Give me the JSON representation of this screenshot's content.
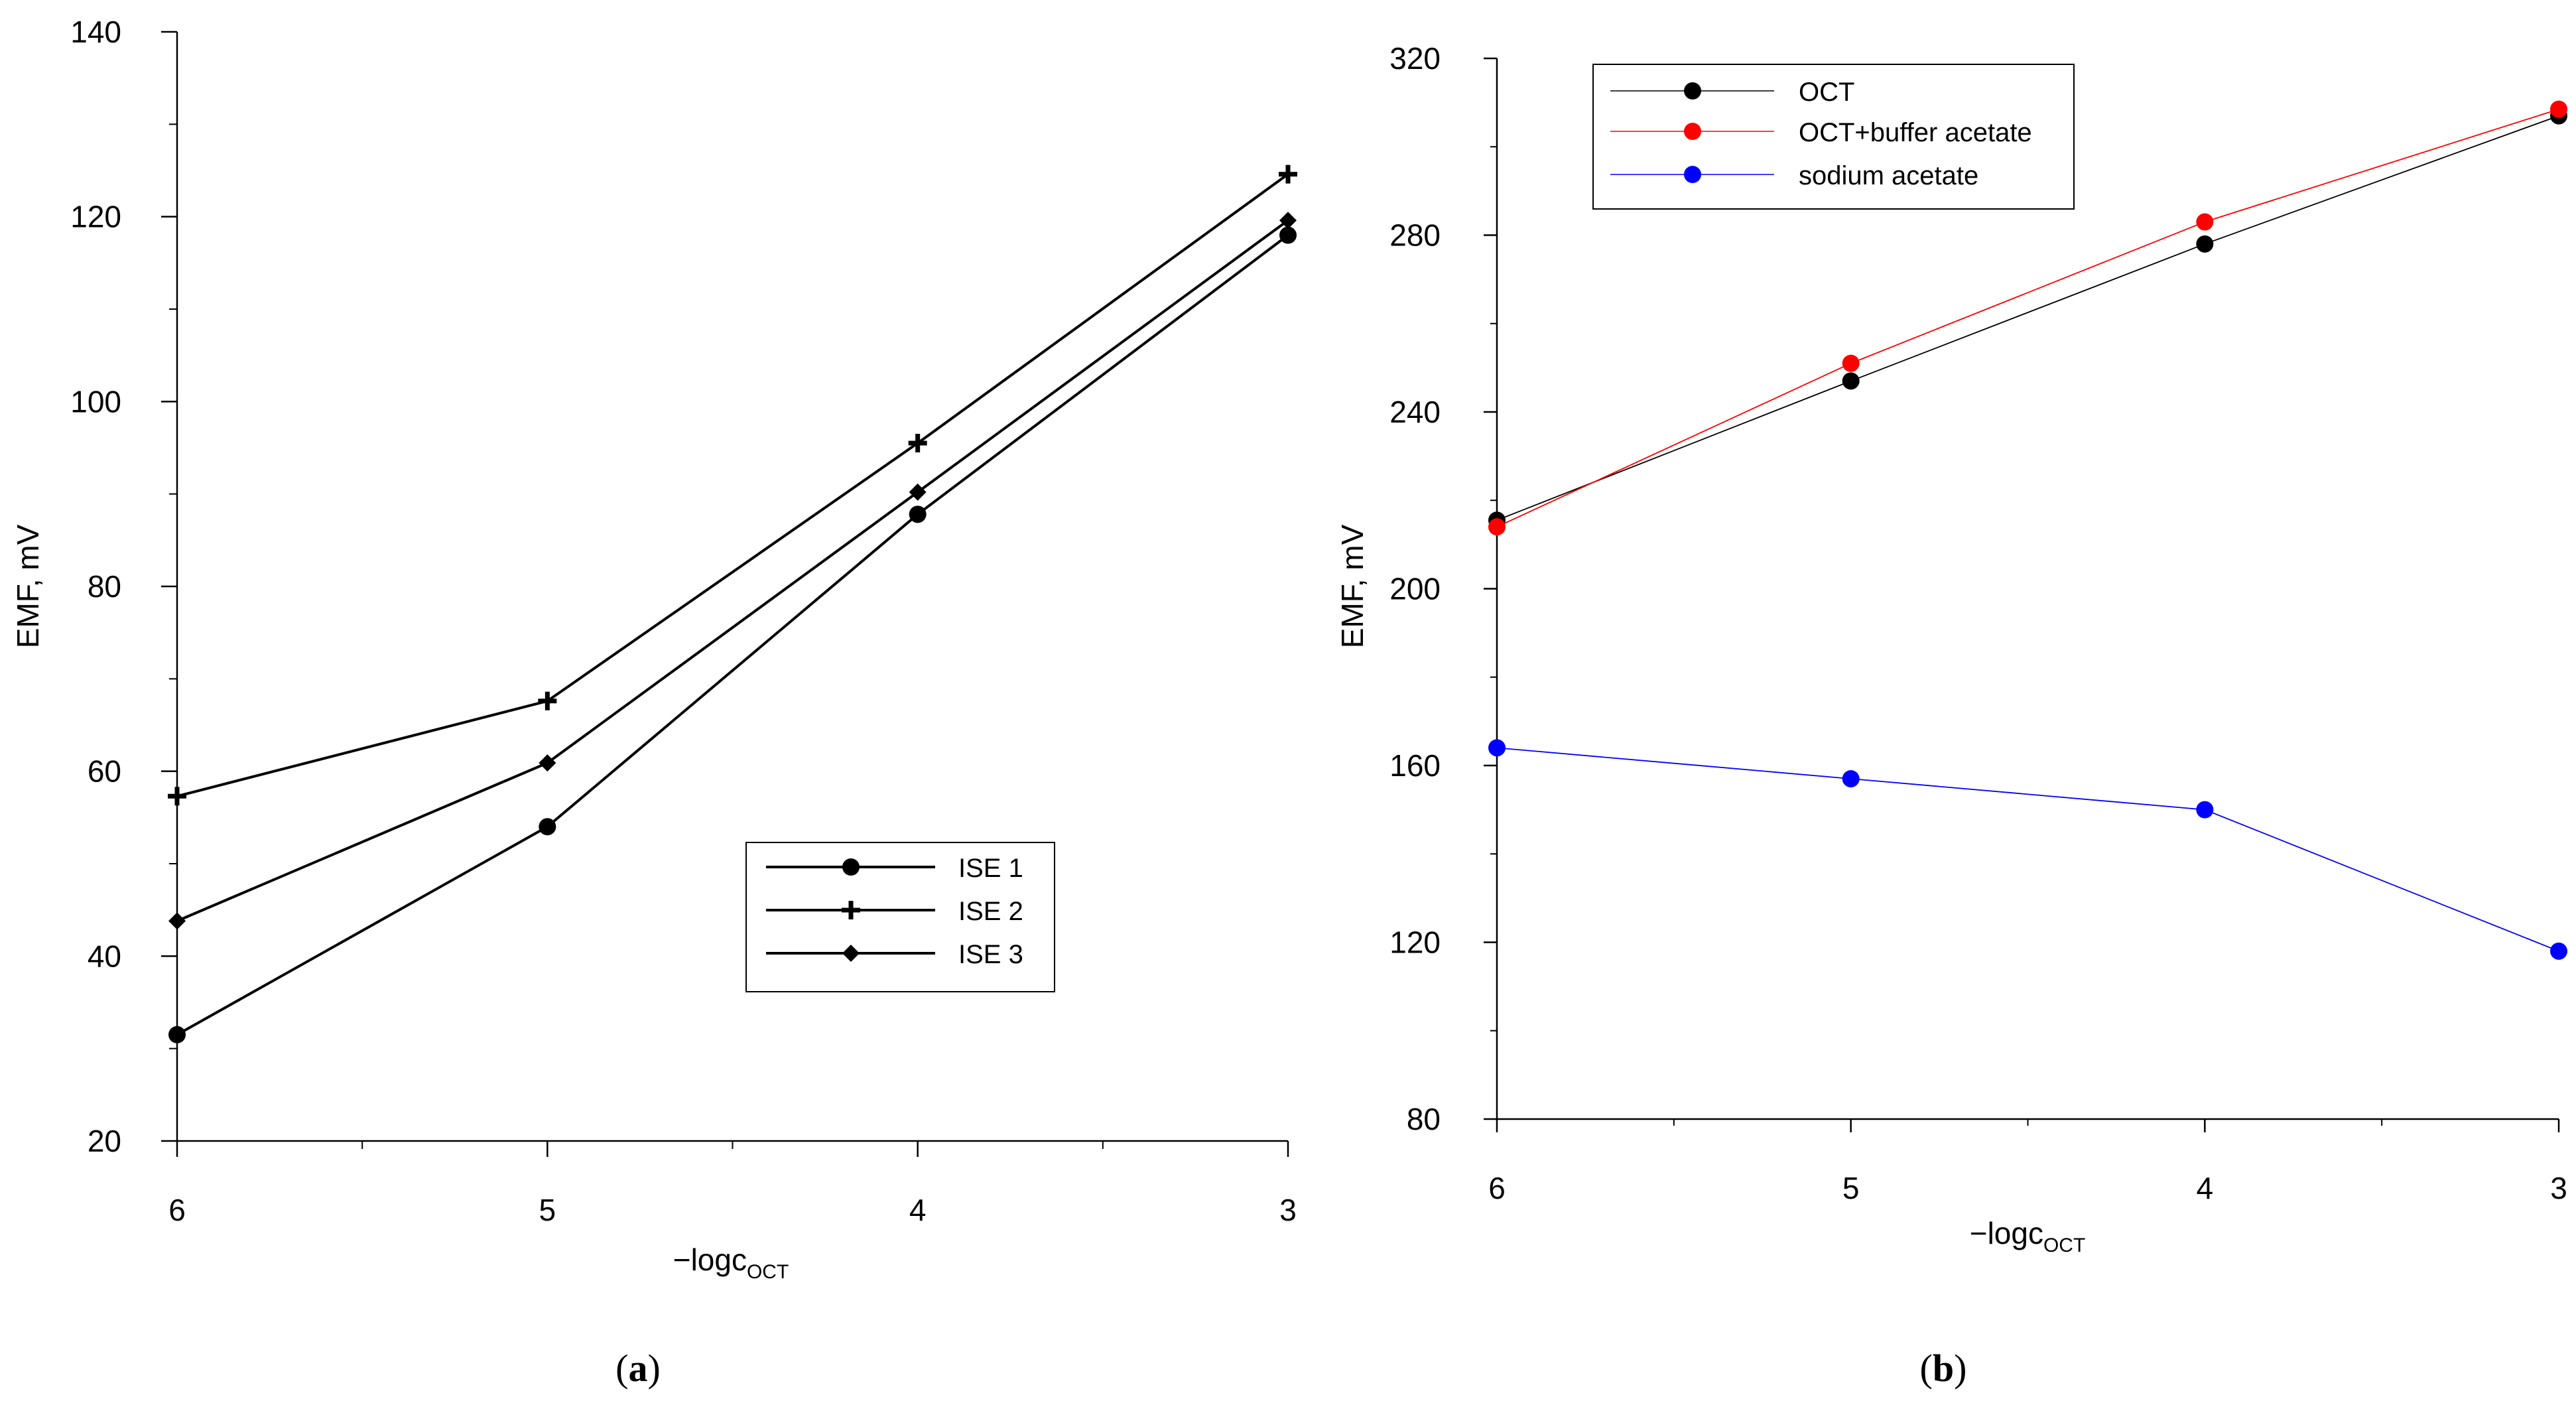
{
  "chart_data": [
    {
      "type": "line",
      "panel": "a",
      "caption_open": "(",
      "caption_letter": "a",
      "caption_close": ")",
      "xlabel_main": "−logc",
      "xlabel_sub": "OCT",
      "ylabel": "EMF, mV",
      "x_ticks": [
        "6",
        "5",
        "4",
        "3"
      ],
      "y_ticks": [
        "20",
        "40",
        "60",
        "80",
        "100",
        "120",
        "140"
      ],
      "ylim": [
        20,
        140
      ],
      "x": [
        6,
        5,
        4,
        3
      ],
      "legend_position": "lower-right",
      "series": [
        {
          "name": "ISE 1",
          "marker": "circle",
          "color": "#000000",
          "values": [
            31.5,
            54.0,
            87.8,
            118.0
          ]
        },
        {
          "name": "ISE 2",
          "marker": "plus",
          "color": "#000000",
          "values": [
            57.3,
            67.6,
            95.5,
            124.6
          ]
        },
        {
          "name": "ISE 3",
          "marker": "diamond",
          "color": "#000000",
          "values": [
            43.8,
            60.9,
            90.2,
            119.6
          ]
        }
      ]
    },
    {
      "type": "line",
      "panel": "b",
      "caption_open": "(",
      "caption_letter": "b",
      "caption_close": ")",
      "xlabel_main": "−logc",
      "xlabel_sub": "OCT",
      "ylabel": "EMF, mV",
      "x_ticks": [
        "6",
        "5",
        "4",
        "3"
      ],
      "y_ticks": [
        "80",
        "120",
        "160",
        "200",
        "240",
        "280",
        "320"
      ],
      "ylim": [
        80,
        320
      ],
      "x": [
        6,
        5,
        4,
        3
      ],
      "legend_position": "top-left",
      "series": [
        {
          "name": "OCT",
          "marker": "circle",
          "color": "#000000",
          "values": [
            215.5,
            247.0,
            278.0,
            307.0
          ]
        },
        {
          "name": "OCT+buffer acetate",
          "marker": "circle",
          "color": "#ff0000",
          "values": [
            214.0,
            251.0,
            283.0,
            308.5
          ]
        },
        {
          "name": "sodium acetate",
          "marker": "circle",
          "color": "#0000ff",
          "values": [
            164.0,
            157.0,
            150.0,
            118.0
          ]
        }
      ]
    }
  ]
}
